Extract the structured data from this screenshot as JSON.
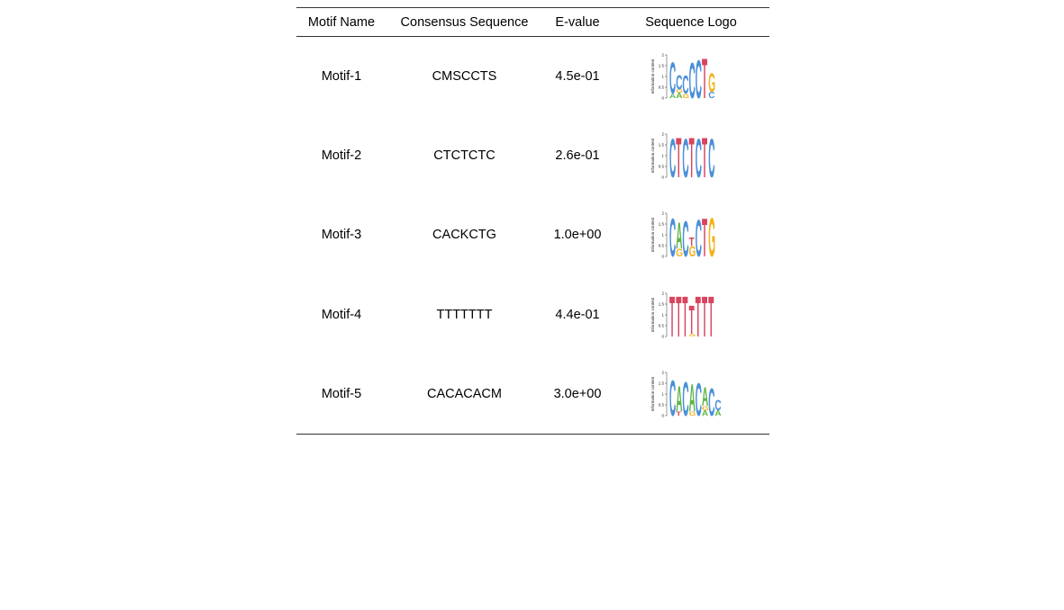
{
  "table": {
    "headers": {
      "motif_name": "Motif Name",
      "consensus": "Consensus Sequence",
      "evalue": "E-value",
      "logo": "Sequence Logo"
    },
    "logo_axis": {
      "ylabel": "Information content",
      "ticks": [
        "2",
        "1.5",
        "1",
        "0.5",
        "0"
      ],
      "ymax": 2
    },
    "nucleotide_colors": {
      "A": "#5fb544",
      "C": "#4a90d9",
      "G": "#f2b31c",
      "T": "#d8455f"
    },
    "rows": [
      {
        "name": "Motif-1",
        "consensus": "CMSCCTS",
        "evalue": "4.5e-01",
        "logo": [
          [
            {
              "b": "A",
              "h": 0.2
            },
            {
              "b": "C",
              "h": 1.5
            }
          ],
          [
            {
              "b": "A",
              "h": 0.25
            },
            {
              "b": "G",
              "h": 0.15
            },
            {
              "b": "C",
              "h": 0.7
            }
          ],
          [
            {
              "b": "G",
              "h": 0.2
            },
            {
              "b": "C",
              "h": 0.85
            }
          ],
          [
            {
              "b": "C",
              "h": 1.7
            }
          ],
          [
            {
              "b": "C",
              "h": 1.8
            }
          ],
          [
            {
              "b": "T",
              "h": 1.9
            }
          ],
          [
            {
              "b": "C",
              "h": 0.3
            },
            {
              "b": "G",
              "h": 0.9
            }
          ]
        ]
      },
      {
        "name": "Motif-2",
        "consensus": "CTCTCTC",
        "evalue": "2.6e-01",
        "logo": [
          [
            {
              "b": "C",
              "h": 1.85
            }
          ],
          [
            {
              "b": "T",
              "h": 1.9
            }
          ],
          [
            {
              "b": "C",
              "h": 1.85
            }
          ],
          [
            {
              "b": "T",
              "h": 1.9
            }
          ],
          [
            {
              "b": "C",
              "h": 1.85
            }
          ],
          [
            {
              "b": "T",
              "h": 1.9
            }
          ],
          [
            {
              "b": "C",
              "h": 1.85
            }
          ]
        ]
      },
      {
        "name": "Motif-3",
        "consensus": "CACKCTG",
        "evalue": "1.0e+00",
        "logo": [
          [
            {
              "b": "C",
              "h": 1.8
            }
          ],
          [
            {
              "b": "G",
              "h": 0.35
            },
            {
              "b": "A",
              "h": 1.25
            }
          ],
          [
            {
              "b": "C",
              "h": 1.7
            }
          ],
          [
            {
              "b": "G",
              "h": 0.5
            },
            {
              "b": "T",
              "h": 0.4
            }
          ],
          [
            {
              "b": "C",
              "h": 1.75
            }
          ],
          [
            {
              "b": "T",
              "h": 1.8
            }
          ],
          [
            {
              "b": "G",
              "h": 1.85
            }
          ]
        ]
      },
      {
        "name": "Motif-4",
        "consensus": "TTTTTTT",
        "evalue": "4.4e-01",
        "logo": [
          [
            {
              "b": "T",
              "h": 1.92
            }
          ],
          [
            {
              "b": "T",
              "h": 1.92
            }
          ],
          [
            {
              "b": "T",
              "h": 1.92
            }
          ],
          [
            {
              "b": "G",
              "h": 0.1
            },
            {
              "b": "T",
              "h": 1.35
            }
          ],
          [
            {
              "b": "T",
              "h": 1.92
            }
          ],
          [
            {
              "b": "T",
              "h": 1.92
            }
          ],
          [
            {
              "b": "T",
              "h": 1.92
            }
          ]
        ]
      },
      {
        "name": "Motif-5",
        "consensus": "CACACACM",
        "evalue": "3.0e+00",
        "logo": [
          [
            {
              "b": "C",
              "h": 1.7
            }
          ],
          [
            {
              "b": "T",
              "h": 0.2
            },
            {
              "b": "A",
              "h": 1.2
            }
          ],
          [
            {
              "b": "C",
              "h": 1.6
            }
          ],
          [
            {
              "b": "G",
              "h": 0.2
            },
            {
              "b": "A",
              "h": 1.3
            }
          ],
          [
            {
              "b": "C",
              "h": 1.55
            }
          ],
          [
            {
              "b": "A",
              "h": 0.25
            },
            {
              "b": "G",
              "h": 0.2
            },
            {
              "b": "A",
              "h": 0.9
            }
          ],
          [
            {
              "b": "C",
              "h": 1.3
            }
          ],
          [
            {
              "b": "A",
              "h": 0.25
            },
            {
              "b": "C",
              "h": 0.5
            }
          ]
        ]
      }
    ]
  }
}
